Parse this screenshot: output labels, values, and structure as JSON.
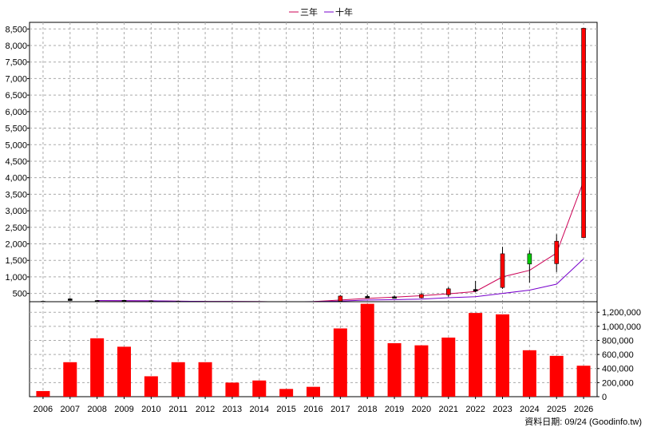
{
  "chart_data": {
    "type": "candlestick_bar_combo",
    "legend": [
      {
        "name": "三年",
        "color": "#cc0055"
      },
      {
        "name": "十年",
        "color": "#7700cc"
      }
    ],
    "legend_position": "top-center",
    "grid": true,
    "x_categories": [
      "2006",
      "2007",
      "2008",
      "2009",
      "2010",
      "2011",
      "2012",
      "2013",
      "2014",
      "2015",
      "2016",
      "2017",
      "2018",
      "2019",
      "2020",
      "2021",
      "2022",
      "2023",
      "2024",
      "2025",
      "2026"
    ],
    "price_panel": {
      "y_axis_side": "left",
      "ylim": [
        250,
        8700
      ],
      "y_ticks": [
        500,
        1000,
        1500,
        2000,
        2500,
        3000,
        3500,
        4000,
        4500,
        5000,
        5500,
        6000,
        6500,
        7000,
        7500,
        8000,
        8500
      ],
      "y_tick_labels": [
        "500",
        "1,000",
        "1,500",
        "2,000",
        "2,500",
        "3,000",
        "3,500",
        "4,000",
        "4,500",
        "5,000",
        "5,500",
        "6,000",
        "6,500",
        "7,000",
        "7,500",
        "8,000",
        "8,500"
      ],
      "candles": [
        {
          "x": "2006",
          "open": 262,
          "high": 268,
          "low": 255,
          "close": 258,
          "color": "#000000"
        },
        {
          "x": "2007",
          "open": 330,
          "high": 360,
          "low": 310,
          "close": 335,
          "color": "#000000"
        },
        {
          "x": "2008",
          "open": 285,
          "high": 300,
          "low": 270,
          "close": 282,
          "color": "#000000"
        },
        {
          "x": "2009",
          "open": 290,
          "high": 305,
          "low": 280,
          "close": 292,
          "color": "#000000"
        },
        {
          "x": "2010",
          "open": 275,
          "high": 285,
          "low": 268,
          "close": 276,
          "color": "#000000"
        },
        {
          "x": "2011",
          "open": 262,
          "high": 270,
          "low": 256,
          "close": 263,
          "color": "#000000"
        },
        {
          "x": "2012",
          "open": 255,
          "high": 262,
          "low": 250,
          "close": 256,
          "color": "#000000"
        },
        {
          "x": "2013",
          "open": 252,
          "high": 258,
          "low": 248,
          "close": 253,
          "color": "#000000"
        },
        {
          "x": "2014",
          "open": 252,
          "high": 258,
          "low": 248,
          "close": 253,
          "color": "#000000"
        },
        {
          "x": "2015",
          "open": 248,
          "high": 254,
          "low": 244,
          "close": 249,
          "color": "#000000"
        },
        {
          "x": "2016",
          "open": 250,
          "high": 256,
          "low": 246,
          "close": 251,
          "color": "#000000"
        },
        {
          "x": "2017",
          "open": 270,
          "high": 450,
          "low": 260,
          "close": 420,
          "color": "#ff0000"
        },
        {
          "x": "2018",
          "open": 400,
          "high": 470,
          "low": 360,
          "close": 410,
          "color": "#000000"
        },
        {
          "x": "2019",
          "open": 390,
          "high": 440,
          "low": 360,
          "close": 400,
          "color": "#000000"
        },
        {
          "x": "2020",
          "open": 370,
          "high": 520,
          "low": 350,
          "close": 470,
          "color": "#ff0000"
        },
        {
          "x": "2021",
          "open": 460,
          "high": 690,
          "low": 400,
          "close": 640,
          "color": "#ff0000"
        },
        {
          "x": "2022",
          "open": 620,
          "high": 880,
          "low": 540,
          "close": 620,
          "color": "#000000"
        },
        {
          "x": "2023",
          "open": 680,
          "high": 1910,
          "low": 640,
          "close": 1700,
          "color": "#ff0000"
        },
        {
          "x": "2024",
          "open": 1700,
          "high": 1810,
          "low": 830,
          "close": 1390,
          "color": "#00cc00"
        },
        {
          "x": "2025",
          "open": 1400,
          "high": 2290,
          "low": 1150,
          "close": 2080,
          "color": "#ff0000"
        },
        {
          "x": "2026",
          "open": 2190,
          "high": 8520,
          "low": 2190,
          "close": 8520,
          "color": "#ff0000"
        }
      ],
      "series": [
        {
          "name": "三年",
          "color": "#cc0055",
          "x": [
            "2008",
            "2009",
            "2010",
            "2011",
            "2012",
            "2013",
            "2014",
            "2015",
            "2016",
            "2017",
            "2018",
            "2019",
            "2020",
            "2021",
            "2022",
            "2023",
            "2024",
            "2025",
            "2026"
          ],
          "values": [
            285,
            282,
            276,
            265,
            258,
            254,
            252,
            246,
            252,
            300,
            350,
            390,
            430,
            490,
            560,
            1000,
            1200,
            1720,
            3900
          ]
        },
        {
          "name": "十年",
          "color": "#7700cc",
          "x": [
            "2008",
            "2009",
            "2010",
            "2011",
            "2012",
            "2013",
            "2014",
            "2015",
            "2016",
            "2017",
            "2018",
            "2019",
            "2020",
            "2021",
            "2022",
            "2023",
            "2024",
            "2025",
            "2026"
          ],
          "values": [
            285,
            282,
            276,
            265,
            258,
            254,
            252,
            246,
            252,
            270,
            300,
            310,
            330,
            370,
            400,
            500,
            600,
            780,
            1550
          ]
        }
      ]
    },
    "volume_panel": {
      "y_axis_side": "right",
      "ylim": [
        0,
        1350000
      ],
      "y_ticks": [
        0,
        200000,
        400000,
        600000,
        800000,
        1000000,
        1200000
      ],
      "y_tick_labels": [
        "0",
        "200,000",
        "400,000",
        "600,000",
        "800,000",
        "1,000,000",
        "1,200,000"
      ],
      "bar_color": "#ff0000",
      "values": [
        80000,
        490000,
        830000,
        710000,
        290000,
        490000,
        490000,
        200000,
        230000,
        110000,
        140000,
        970000,
        1320000,
        760000,
        730000,
        840000,
        1190000,
        1170000,
        660000,
        580000,
        440000
      ]
    },
    "footer": "資料日期: 09/24  (Goodinfo.tw)"
  }
}
